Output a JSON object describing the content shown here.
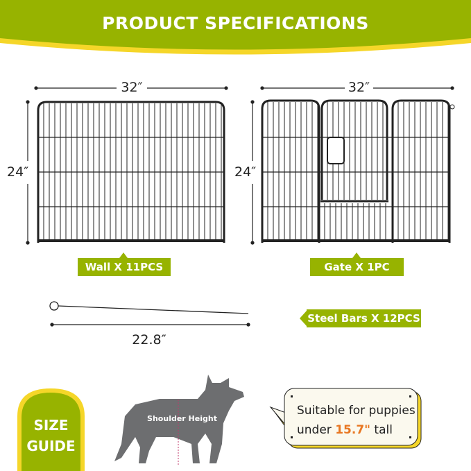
{
  "header": {
    "title": "PRODUCT SPECIFICATIONS"
  },
  "wall": {
    "width": "32″",
    "height": "24″",
    "label": "Wall X 11PCS"
  },
  "gate": {
    "width": "32″",
    "height": "24″",
    "label": "Gate X 1PC"
  },
  "steel_bar": {
    "length": "22.8″",
    "label": "Steel Bars X 12PCS"
  },
  "size_guide": {
    "line1": "SIZE",
    "line2": "GUIDE",
    "dog_label": "Shoulder Height"
  },
  "bubble": {
    "line1": "Suitable for puppies",
    "line2_pre": "under ",
    "highlight": "15.7\"",
    "line2_post": " tall"
  },
  "colors": {
    "brand_green": "#97b300",
    "accent_yellow": "#f5d629",
    "highlight_orange": "#e87722"
  }
}
